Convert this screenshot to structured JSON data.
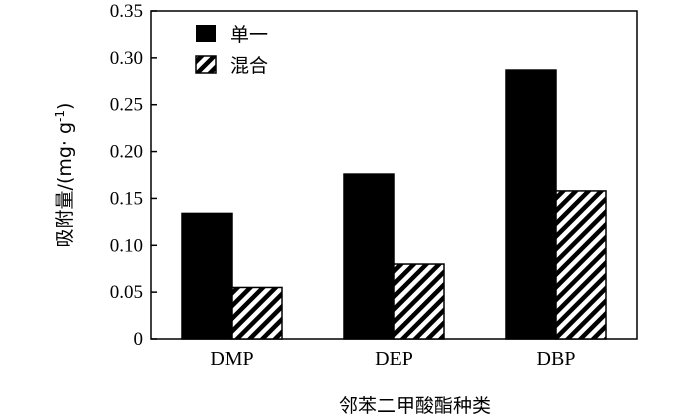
{
  "chart_data": {
    "type": "bar",
    "title": "",
    "xlabel": "邻苯二甲酸酯种类",
    "ylabel_main": "吸附量/(mg· g",
    "ylabel_sup": "-1",
    "ylabel_close": ")",
    "categories": [
      "DMP",
      "DEP",
      "DBP"
    ],
    "series": [
      {
        "name": "单一",
        "values": [
          0.134,
          0.176,
          0.287
        ],
        "fill": "solid",
        "color": "#000000"
      },
      {
        "name": "混合",
        "values": [
          0.055,
          0.08,
          0.158
        ],
        "fill": "hatched",
        "color": "#000000"
      }
    ],
    "ylim": [
      0,
      0.35
    ],
    "yticks": [
      "0",
      "0.05",
      "0.10",
      "0.15",
      "0.20",
      "0.25",
      "0.30",
      "0.35"
    ],
    "ytick_values": [
      0,
      0.05,
      0.1,
      0.15,
      0.2,
      0.25,
      0.3,
      0.35
    ],
    "legend_position": "top-left",
    "grid": false
  }
}
